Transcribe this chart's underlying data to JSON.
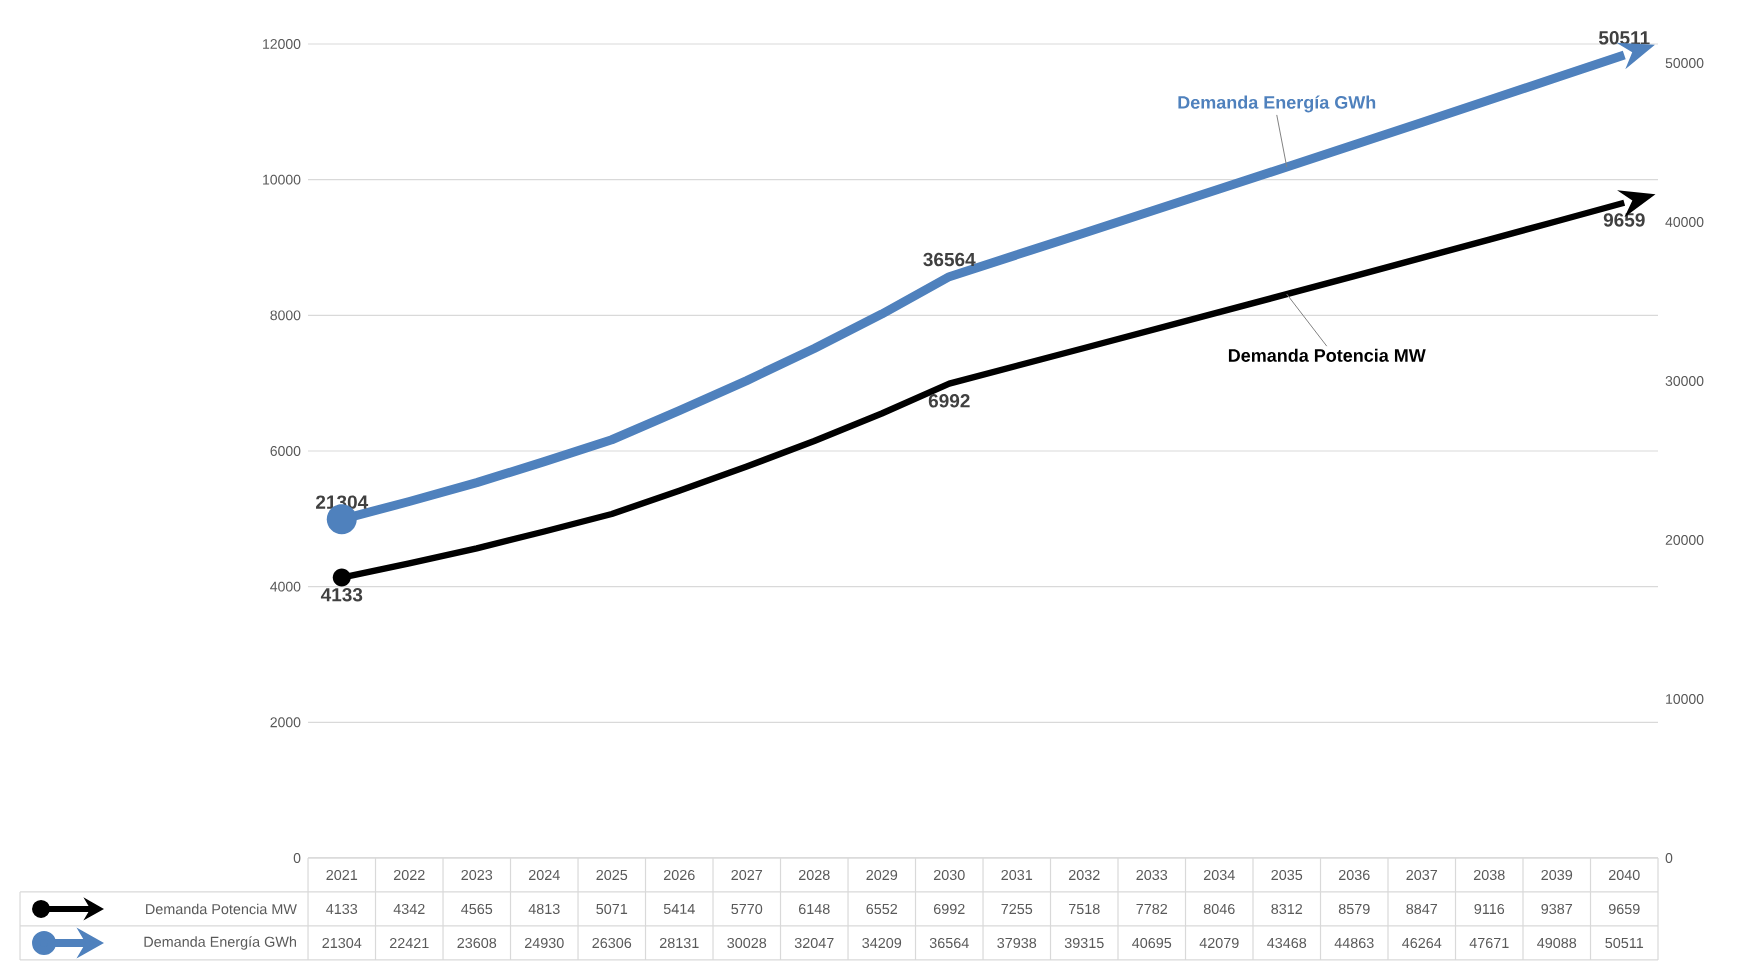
{
  "chart_data": {
    "type": "line",
    "categories": [
      "2021",
      "2022",
      "2023",
      "2024",
      "2025",
      "2026",
      "2027",
      "2028",
      "2029",
      "2030",
      "2031",
      "2032",
      "2033",
      "2034",
      "2035",
      "2036",
      "2037",
      "2038",
      "2039",
      "2040"
    ],
    "series": [
      {
        "name": "Demanda Potencia MW",
        "color": "#000000",
        "values": [
          4133,
          4342,
          4565,
          4813,
          5071,
          5414,
          5770,
          6148,
          6552,
          6992,
          7255,
          7518,
          7782,
          8046,
          8312,
          8579,
          8847,
          9116,
          9387,
          9659
        ]
      },
      {
        "name": "Demanda Energía GWh",
        "color": "#4f81bd",
        "axis": "y2",
        "values": [
          21304,
          22421,
          23608,
          24930,
          26306,
          28131,
          30028,
          32047,
          34209,
          36564,
          37938,
          39315,
          40695,
          42079,
          43468,
          44863,
          46264,
          47671,
          49088,
          50511
        ]
      }
    ],
    "ylim": [
      0,
      12000
    ],
    "yticks": [
      0,
      2000,
      4000,
      6000,
      8000,
      10000,
      12000
    ],
    "y2lim": [
      0,
      51200
    ],
    "y2ticks": [
      0,
      10000,
      20000,
      30000,
      40000,
      50000
    ],
    "annotations": [
      {
        "text": "4133",
        "x": "2021",
        "y": 4133
      },
      {
        "text": "6992",
        "x": "2030",
        "y": 6992
      },
      {
        "text": "9659",
        "x": "2040",
        "y": 9659
      },
      "21304",
      "36564",
      "50511"
    ],
    "grid": "y",
    "data_labels": true
  }
}
